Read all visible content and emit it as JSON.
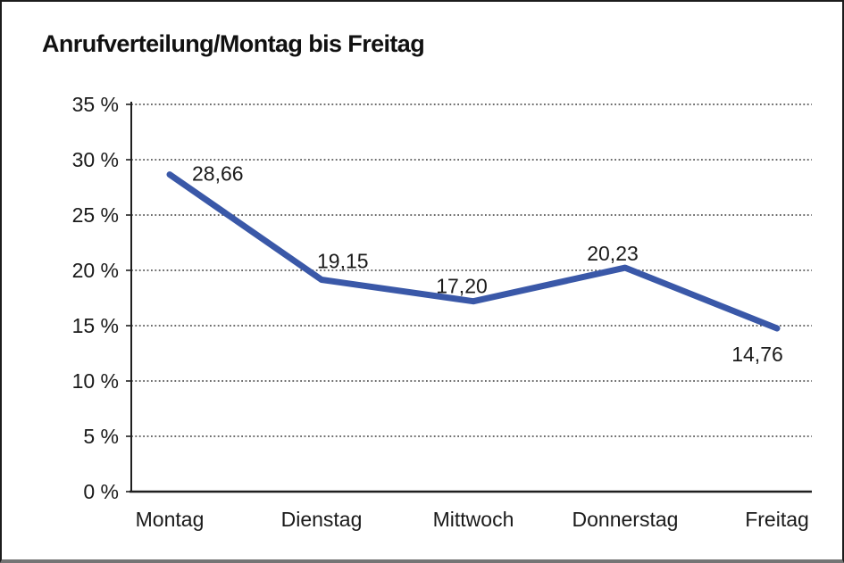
{
  "chart": {
    "title": "Anrufverteilung/Montag bis Freitag"
  },
  "chart_data": {
    "type": "line",
    "title": "Anrufverteilung/Montag bis Freitag",
    "categories": [
      "Montag",
      "Dienstag",
      "Mittwoch",
      "Donnerstag",
      "Freitag"
    ],
    "values": [
      28.66,
      19.15,
      17.2,
      20.23,
      14.76
    ],
    "point_labels": [
      "28,66",
      "19,15",
      "17,20",
      "20,23",
      "14,76"
    ],
    "xlabel": "",
    "ylabel": "",
    "ylim": [
      0,
      35
    ],
    "y_tick_step": 5,
    "y_tick_labels": [
      "35 %",
      "30 %",
      "25 %",
      "20 %",
      "15 %",
      "10 %",
      "5 %",
      "0 %"
    ],
    "grid": "horizontal-dotted",
    "legend": "none",
    "line_color": "#3A58A8",
    "axis_color": "#1f1f1f",
    "gridline_color": "#3c3c3c",
    "label_color": "#1a1a1a"
  }
}
